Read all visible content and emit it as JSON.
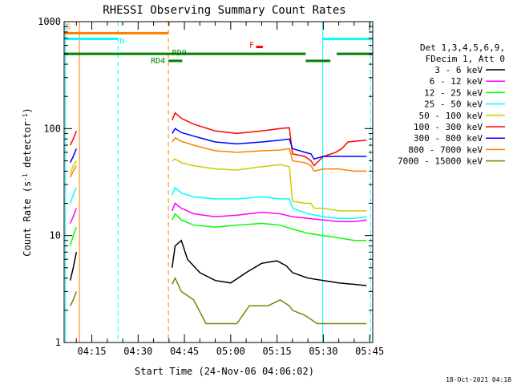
{
  "chart_data": {
    "type": "line",
    "title": "RHESSI Observing Summary Count Rates",
    "xlabel": "Start Time (24-Nov-06 04:06:02)",
    "ylabel_parts": [
      "Count Rate (s",
      "-1",
      " detector",
      "-1",
      ")"
    ],
    "y_scale": "log",
    "ylim": [
      1,
      1000
    ],
    "y_ticks": [
      {
        "value": 1,
        "label": "1"
      },
      {
        "value": 10,
        "label": "10"
      },
      {
        "value": 100,
        "label": "100"
      },
      {
        "value": 1000,
        "label": "1000"
      }
    ],
    "x_ticks": [
      "04:15",
      "04:30",
      "04:45",
      "05:00",
      "05:15",
      "05:30",
      "05:45"
    ],
    "x_tick_minutes": [
      15,
      30,
      45,
      60,
      75,
      90,
      105
    ],
    "xlim_minutes": [
      6.03,
      106.0
    ],
    "legend_header": [
      "Det 1,3,4,5,6,9,",
      "FDecim 1, Att 0"
    ],
    "series": [
      {
        "name": "3 - 6 keV",
        "color": "#000000",
        "points": [
          [
            8,
            3.8
          ],
          [
            9,
            5
          ],
          [
            10,
            7
          ],
          [
            41,
            5
          ],
          [
            42,
            8
          ],
          [
            44,
            9
          ],
          [
            46,
            6
          ],
          [
            50,
            4.5
          ],
          [
            55,
            3.8
          ],
          [
            60,
            3.6
          ],
          [
            65,
            4.5
          ],
          [
            70,
            5.5
          ],
          [
            75,
            5.8
          ],
          [
            78,
            5.2
          ],
          [
            80,
            4.5
          ],
          [
            85,
            4
          ],
          [
            90,
            3.8
          ],
          [
            95,
            3.6
          ],
          [
            100,
            3.5
          ],
          [
            104,
            3.4
          ]
        ]
      },
      {
        "name": "6 - 12 keV",
        "color": "#ff00ff",
        "points": [
          [
            8,
            13
          ],
          [
            9,
            15
          ],
          [
            10,
            18
          ],
          [
            41,
            17
          ],
          [
            42,
            20
          ],
          [
            44,
            18
          ],
          [
            48,
            16
          ],
          [
            55,
            15
          ],
          [
            62,
            15.5
          ],
          [
            70,
            16.5
          ],
          [
            76,
            16
          ],
          [
            80,
            15
          ],
          [
            85,
            14.5
          ],
          [
            90,
            14
          ],
          [
            95,
            13.5
          ],
          [
            100,
            13.5
          ],
          [
            104,
            14
          ]
        ]
      },
      {
        "name": "12 - 25 keV",
        "color": "#00ff00",
        "points": [
          [
            8,
            8
          ],
          [
            9,
            10
          ],
          [
            10,
            12
          ],
          [
            41,
            14
          ],
          [
            42,
            16
          ],
          [
            44,
            14
          ],
          [
            48,
            12.5
          ],
          [
            55,
            12
          ],
          [
            62,
            12.5
          ],
          [
            70,
            13
          ],
          [
            76,
            12.5
          ],
          [
            80,
            11.5
          ],
          [
            85,
            10.5
          ],
          [
            90,
            10
          ],
          [
            95,
            9.5
          ],
          [
            100,
            9
          ],
          [
            104,
            9
          ]
        ]
      },
      {
        "name": "25 - 50 keV",
        "color": "#00ffff",
        "points": [
          [
            8,
            20
          ],
          [
            9,
            24
          ],
          [
            10,
            28
          ],
          [
            41,
            24
          ],
          [
            42,
            28
          ],
          [
            44,
            25
          ],
          [
            48,
            23
          ],
          [
            55,
            22
          ],
          [
            62,
            22
          ],
          [
            70,
            23
          ],
          [
            76,
            22
          ],
          [
            79,
            22
          ],
          [
            80,
            18
          ],
          [
            85,
            16
          ],
          [
            90,
            15
          ],
          [
            95,
            14.5
          ],
          [
            100,
            14.5
          ],
          [
            104,
            15
          ]
        ]
      },
      {
        "name": "50 - 100 keV",
        "color": "#cccc00",
        "points": [
          [
            8,
            38
          ],
          [
            9,
            45
          ],
          [
            10,
            50
          ],
          [
            41,
            50
          ],
          [
            42,
            52
          ],
          [
            44,
            48
          ],
          [
            48,
            45
          ],
          [
            55,
            42
          ],
          [
            62,
            41
          ],
          [
            70,
            44
          ],
          [
            76,
            46
          ],
          [
            79,
            44
          ],
          [
            80,
            21
          ],
          [
            84,
            20
          ],
          [
            86,
            20
          ],
          [
            87,
            18
          ],
          [
            90,
            18
          ],
          [
            95,
            17
          ],
          [
            100,
            17
          ],
          [
            104,
            17
          ]
        ]
      },
      {
        "name": "100 - 300 keV",
        "color": "#ff0000",
        "points": [
          [
            8,
            70
          ],
          [
            9,
            80
          ],
          [
            10,
            95
          ],
          [
            41,
            120
          ],
          [
            42,
            140
          ],
          [
            44,
            125
          ],
          [
            48,
            110
          ],
          [
            55,
            95
          ],
          [
            62,
            90
          ],
          [
            70,
            95
          ],
          [
            76,
            100
          ],
          [
            79,
            102
          ],
          [
            80,
            58
          ],
          [
            84,
            55
          ],
          [
            86,
            50
          ],
          [
            87,
            45
          ],
          [
            90,
            55
          ],
          [
            94,
            60
          ],
          [
            96,
            65
          ],
          [
            98,
            75
          ],
          [
            104,
            78
          ]
        ]
      },
      {
        "name": "300 - 800 keV",
        "color": "#0000ff",
        "points": [
          [
            8,
            48
          ],
          [
            9,
            55
          ],
          [
            10,
            65
          ],
          [
            41,
            90
          ],
          [
            42,
            100
          ],
          [
            44,
            92
          ],
          [
            48,
            85
          ],
          [
            55,
            75
          ],
          [
            62,
            72
          ],
          [
            70,
            75
          ],
          [
            76,
            78
          ],
          [
            79,
            80
          ],
          [
            80,
            65
          ],
          [
            84,
            60
          ],
          [
            86,
            58
          ],
          [
            87,
            52
          ],
          [
            90,
            55
          ],
          [
            95,
            55
          ],
          [
            100,
            55
          ],
          [
            104,
            55
          ]
        ]
      },
      {
        "name": "800 - 7000 keV",
        "color": "#ff8000",
        "points": [
          [
            8,
            35
          ],
          [
            9,
            40
          ],
          [
            10,
            45
          ],
          [
            41,
            75
          ],
          [
            42,
            82
          ],
          [
            44,
            76
          ],
          [
            48,
            70
          ],
          [
            55,
            62
          ],
          [
            62,
            60
          ],
          [
            70,
            62
          ],
          [
            76,
            63
          ],
          [
            79,
            65
          ],
          [
            80,
            50
          ],
          [
            84,
            48
          ],
          [
            86,
            45
          ],
          [
            87,
            40
          ],
          [
            90,
            42
          ],
          [
            95,
            42
          ],
          [
            100,
            40
          ],
          [
            104,
            40
          ]
        ]
      },
      {
        "name": "7000 - 15000 keV",
        "color": "#808000",
        "points": [
          [
            8,
            2.2
          ],
          [
            9,
            2.5
          ],
          [
            10,
            3
          ],
          [
            41,
            3.5
          ],
          [
            42,
            4
          ],
          [
            44,
            3
          ],
          [
            48,
            2.5
          ],
          [
            52,
            1.5
          ],
          [
            56,
            1.5
          ],
          [
            62,
            1.5
          ],
          [
            66,
            2.2
          ],
          [
            72,
            2.2
          ],
          [
            76,
            2.5
          ],
          [
            79,
            2.2
          ],
          [
            80,
            2
          ],
          [
            84,
            1.8
          ],
          [
            88,
            1.5
          ],
          [
            94,
            1.5
          ],
          [
            100,
            1.5
          ],
          [
            104,
            1.5
          ]
        ]
      }
    ],
    "state_bars": [
      {
        "label": "S",
        "color": "#ff8000",
        "level": 780,
        "segments": [
          [
            6.03,
            39.8
          ]
        ]
      },
      {
        "label": "N",
        "color": "#00ffff",
        "level": 690,
        "segments": [
          [
            6.03,
            23.5
          ],
          [
            89.8,
            106.0
          ]
        ]
      },
      {
        "label": "RD0",
        "color": "#008000",
        "level": 500,
        "segments": [
          [
            6.03,
            84.3
          ],
          [
            94.3,
            106.0
          ]
        ]
      },
      {
        "label": "RD4",
        "color": "#008000",
        "level": 430,
        "segments": [
          [
            39.8,
            44.3
          ],
          [
            84.3,
            92.3
          ]
        ]
      },
      {
        "label": "F",
        "color": "#ff0000",
        "level": 580,
        "segments": [
          [
            68.2,
            70.4
          ]
        ]
      }
    ],
    "vlines": [
      {
        "minute": 6.5,
        "color": "#00ffff",
        "style": "solid"
      },
      {
        "minute": 11.0,
        "color": "#ff8000",
        "style": "solid"
      },
      {
        "minute": 23.5,
        "color": "#00ffff",
        "style": "dashed"
      },
      {
        "minute": 39.8,
        "color": "#ff8000",
        "style": "dashed"
      },
      {
        "minute": 89.8,
        "color": "#00ffff",
        "style": "solid"
      },
      {
        "minute": 105.3,
        "color": "#00ffff",
        "style": "dashed"
      }
    ],
    "grid": false,
    "legend_position": "right"
  },
  "footer": {
    "timestamp": "18-Oct-2021 04:18"
  }
}
